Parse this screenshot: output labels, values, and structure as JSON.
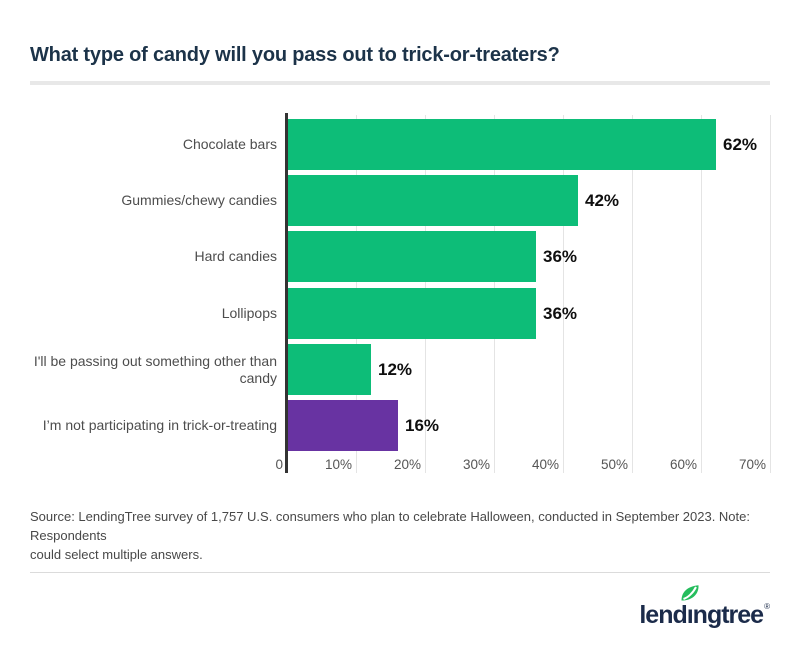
{
  "title": "What type of candy will you pass out to trick-or-treaters?",
  "chart_data": {
    "type": "bar",
    "orientation": "horizontal",
    "title": "What type of candy will you pass out to trick-or-treaters?",
    "categories": [
      "Chocolate bars",
      "Gummies/chewy candies",
      "Hard candies",
      "Lollipops",
      "I'll be passing out something other than\ncandy",
      "I’m not participating in trick-or-treating"
    ],
    "values": [
      62,
      42,
      36,
      36,
      12,
      16
    ],
    "value_labels": [
      "62%",
      "42%",
      "36%",
      "36%",
      "12%",
      "16%"
    ],
    "x_ticks": [
      "0",
      "10%",
      "20%",
      "30%",
      "40%",
      "50%",
      "60%",
      "70%"
    ],
    "xlim": [
      0,
      70
    ],
    "grid": true,
    "legend": false,
    "bar_colors": [
      "#0dbd78",
      "#0dbd78",
      "#0dbd78",
      "#0dbd78",
      "#0dbd78",
      "#6833a2"
    ]
  },
  "source": {
    "lines": [
      "Source: LendingTree survey of 1,757 U.S. consumers who plan to celebrate Halloween, conducted in September 2023. Note: Respondents",
      "could select multiple answers."
    ]
  },
  "footer": {
    "logo_text": "lendingtree",
    "logo_reg": "®",
    "leaf_icon": "leaf-icon"
  },
  "colors": {
    "green": "#0dbd78",
    "purple": "#6833a2",
    "navy_title": "#1c3349",
    "navy_logo": "#1b2b4a",
    "category_gray": "#4d4d4d",
    "tick_gray": "#555555",
    "grid_gray": "#e4e4e4",
    "axis_dark": "#333333",
    "divider": "#e8e8e8"
  }
}
